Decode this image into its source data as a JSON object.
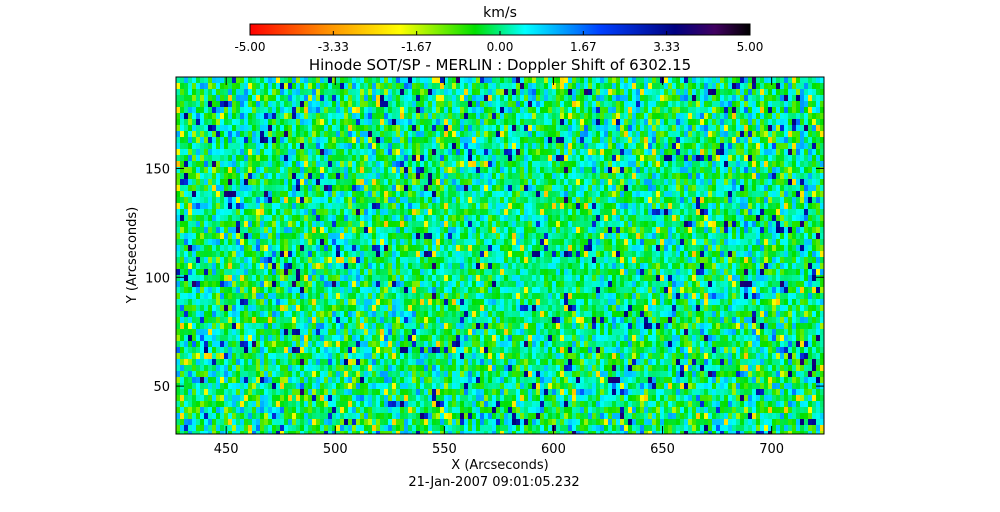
{
  "chart_data": {
    "type": "heatmap",
    "title": "Hinode SOT/SP - MERLIN : Doppler Shift of 6302.15",
    "xlabel": "X (Arcseconds)",
    "ylabel": "Y (Arcseconds)",
    "date_label": "21-Jan-2007 09:01:05.232",
    "xlim": [
      427,
      724
    ],
    "ylim": [
      28,
      192
    ],
    "xticks": [
      450,
      500,
      550,
      600,
      650,
      700
    ],
    "yticks": [
      50,
      100,
      150
    ],
    "colorbar": {
      "unit": "km/s",
      "min": -5.0,
      "max": 5.0,
      "ticks": [
        "-5.00",
        "-3.33",
        "-1.67",
        "0.00",
        "1.67",
        "3.33",
        "5.00"
      ],
      "colormap": [
        "#ff0000",
        "#ff8c00",
        "#ffff00",
        "#00e000",
        "#00ffff",
        "#0040ff",
        "#000080",
        "#400060",
        "#000000"
      ]
    },
    "field": {
      "description_values": "Doppler velocity field, mostly near 0 km/s (green/cyan), scattered -2..-3 km/s (yellow) and +2..+4 km/s (blue) granulation features",
      "dominant_value": 0.0,
      "spread": 1.4
    }
  }
}
